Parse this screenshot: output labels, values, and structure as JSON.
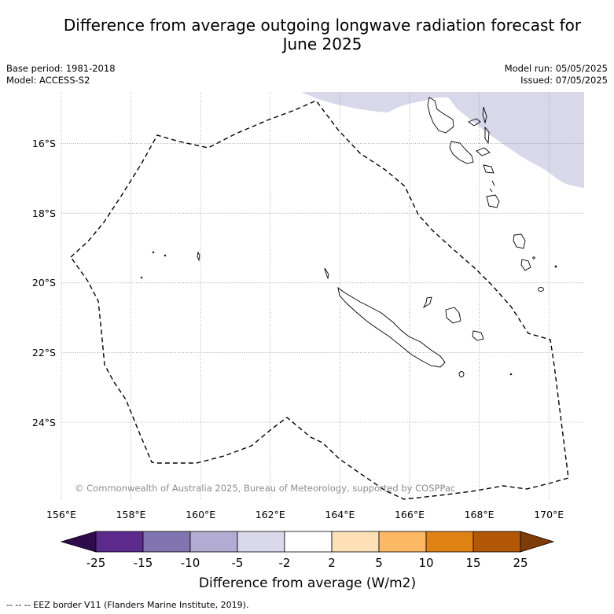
{
  "title": {
    "line1": "Difference from average outgoing longwave radiation forecast for",
    "line2": "June 2025"
  },
  "meta_left": {
    "base_period": "Base period: 1981-2018",
    "model": "Model: ACCESS-S2"
  },
  "meta_right": {
    "model_run": "Model run: 05/05/2025",
    "issued": "Issued: 07/05/2025"
  },
  "map": {
    "x_ticks": [
      "156°E",
      "158°E",
      "160°E",
      "162°E",
      "164°E",
      "166°E",
      "168°E",
      "170°E"
    ],
    "y_ticks": [
      "16°S",
      "18°S",
      "20°S",
      "22°S",
      "24°S"
    ],
    "copyright": "© Commonwealth of Australia 2025, Bureau of Meteorology, supported by COSPPac",
    "anomaly_fill": "#d8d8ea",
    "eez_style": "dashed"
  },
  "colorbar": {
    "label": "Difference from average (W/m2)",
    "ticks": [
      "-25",
      "-15",
      "-10",
      "-5",
      "-2",
      "2",
      "5",
      "10",
      "15",
      "25"
    ],
    "colors": [
      "#2f0b4d",
      "#5b2a8c",
      "#8174b0",
      "#b2acd3",
      "#d8d8ea",
      "#ffffff",
      "#fee0b6",
      "#fdb863",
      "#e08214",
      "#b35806",
      "#7f3b08"
    ]
  },
  "footer": "--  --  -- EEZ border V11 (Flanders Marine Institute, 2019)."
}
